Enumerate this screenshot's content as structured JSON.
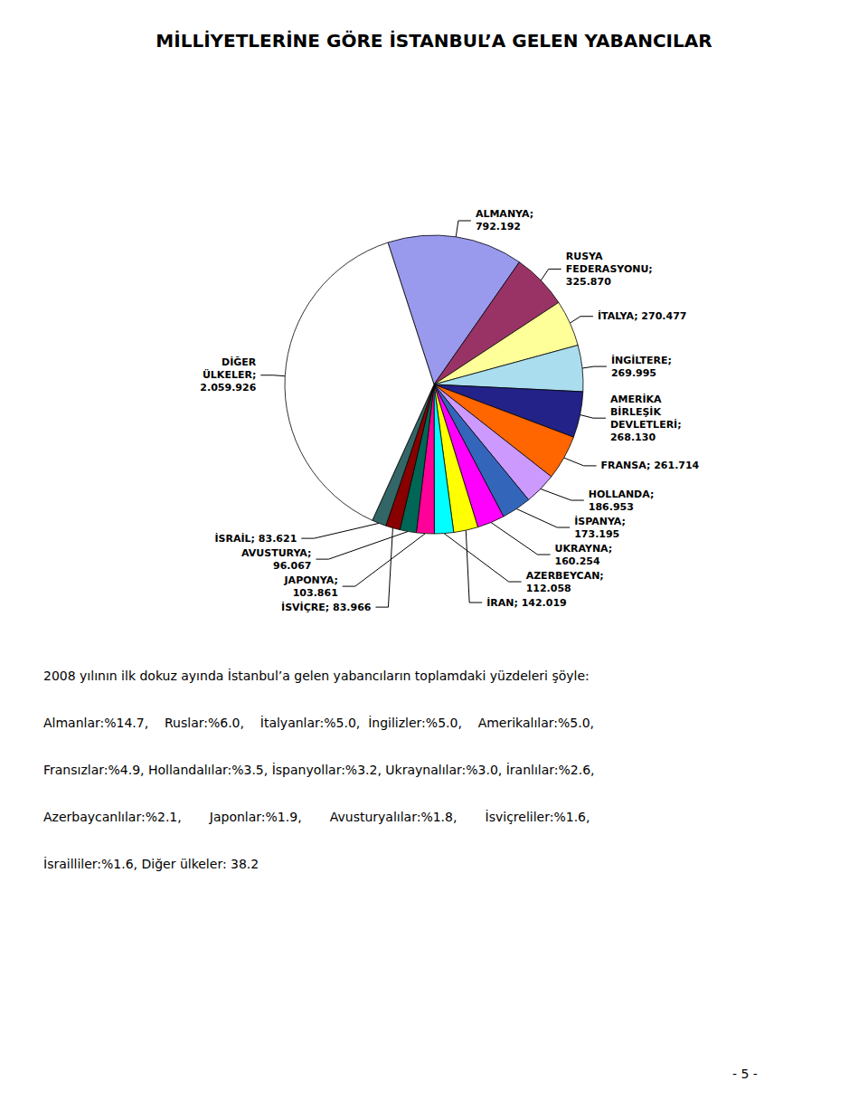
{
  "chart_data": {
    "type": "pie",
    "title": "MİLLİYETLERİNE GÖRE İSTANBUL’A GELEN YABANCILAR",
    "categories": [
      "ALMANYA;\n792.192",
      "RUSYA\nFEDERASYONU;\n325.870",
      "İTALYA; 270.477",
      "İNGİLTERE;\n269.995",
      "AMERİKA\nBİRLEŞİK\nDEVLETLERİ;\n268.130",
      "FRANSA; 261.714",
      "HOLLANDA;\n186.953",
      "İSPANYA;\n173.195",
      "UKRAYNA;\n160.254",
      "İRAN; 142.019",
      "AZERBEYCAN;\n112.058",
      "JAPONYA;\n103.861",
      "AVUSTURYA;\n96.067",
      "İSVİÇRE; 83.966",
      "İSRAİL; 83.621",
      "DİĞER\nÜLKELER;\n2.059.926"
    ],
    "values": [
      792.192,
      325.87,
      270.477,
      269.995,
      268.13,
      261.714,
      186.953,
      173.195,
      160.254,
      142.019,
      112.058,
      103.861,
      96.067,
      83.966,
      83.621,
      2059.926
    ],
    "colors": [
      "#9999EE",
      "#993366",
      "#FFFF99",
      "#AADDEE",
      "#222288",
      "#FF6600",
      "#CC99FF",
      "#3366BB",
      "#FF00FF",
      "#FFFF00",
      "#00FFFF",
      "#FF0099",
      "#006655",
      "#880000",
      "#336666",
      "#FFFFFF"
    ],
    "annotations": [
      "2008 yılının ilk dokuz ayında İstanbul’a gelen yabancıların toplamdaki yüzdeleri şöyle:",
      "Almanlar:%14.7,    Ruslar:%6.0,    İtalyanlar:%5.0,  İngilizler:%5.0,    Amerikalılar:%5.0,",
      "Fransızlar:%4.9, Hollandalılar:%3.5, İspanyollar:%3.2, Ukraynalılar:%3.0, İranlılar:%2.6,",
      "Azerbaycanlılar:%2.1,       Japonlar:%1.9,       Avusturyalılar:%1.8,       İsviçreliler:%1.6,",
      "İsrailliler:%1.6, Diğer ülkeler: 38.2",
      "- 5 -"
    ],
    "legend": false
  }
}
